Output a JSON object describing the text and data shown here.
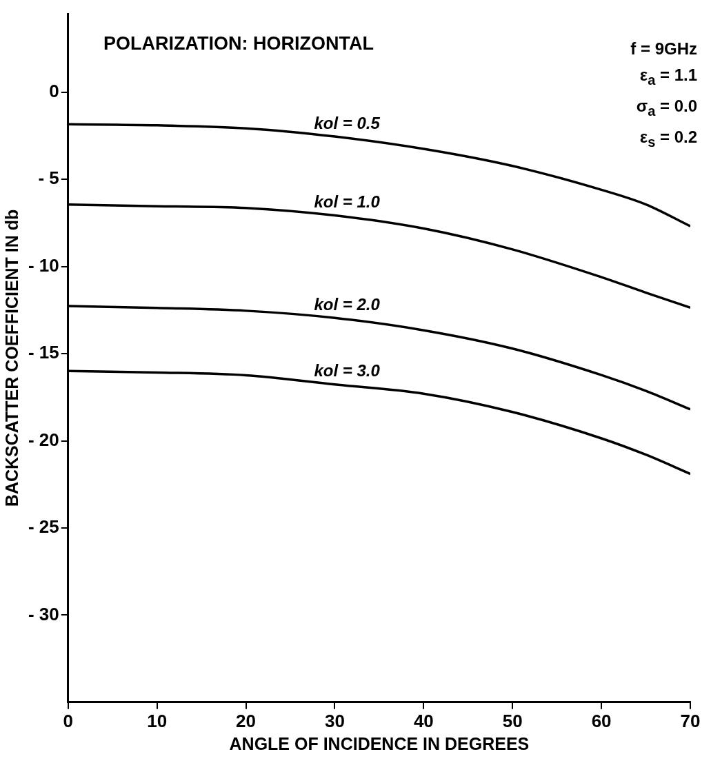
{
  "chart_data": {
    "type": "line",
    "title": "POLARIZATION: HORIZONTAL",
    "xlabel": "ANGLE OF INCIDENCE IN DEGREES",
    "ylabel": "BACKSCATTER COEFFICIENT IN db",
    "annotations": [
      "f = 9GHz",
      "ε$_{a}$ = 1.1",
      "σ$_{a}$ = 0.0",
      "ε$_{s}$ = 0.2"
    ],
    "x": [
      0,
      10,
      20,
      30,
      40,
      50,
      60,
      65,
      70
    ],
    "series": [
      {
        "name": "kol = 0.5",
        "color": "#000000",
        "values": [
          -1.84,
          -1.9,
          -2.07,
          -2.54,
          -3.25,
          -4.23,
          -5.6,
          -6.44,
          -7.69
        ]
      },
      {
        "name": "kol = 1.0",
        "color": "#000000",
        "values": [
          -6.44,
          -6.54,
          -6.64,
          -7.07,
          -7.82,
          -9.02,
          -10.61,
          -11.5,
          -12.36
        ]
      },
      {
        "name": "kol = 2.0",
        "color": "#000000",
        "values": [
          -12.27,
          -12.38,
          -12.54,
          -12.95,
          -13.66,
          -14.71,
          -16.23,
          -17.14,
          -18.2
        ]
      },
      {
        "name": "kol = 3.0",
        "color": "#000000",
        "values": [
          -16.0,
          -16.08,
          -16.24,
          -16.77,
          -17.3,
          -18.35,
          -19.86,
          -20.8,
          -21.9
        ]
      }
    ],
    "xlim": [
      0,
      70
    ],
    "xticks": [
      0,
      10,
      20,
      30,
      40,
      50,
      60,
      70
    ],
    "ylim": [
      -35,
      4.5
    ],
    "yticks": [
      {
        "value": -30,
        "label": "- 30"
      },
      {
        "value": -25,
        "label": "- 25"
      },
      {
        "value": -20,
        "label": "- 20"
      },
      {
        "value": -15,
        "label": "- 15"
      },
      {
        "value": -10,
        "label": "- 10"
      },
      {
        "value": -5,
        "label": "- 5"
      },
      0
    ],
    "grid": false,
    "legend": false,
    "marker": "none",
    "line_style": "solid"
  }
}
